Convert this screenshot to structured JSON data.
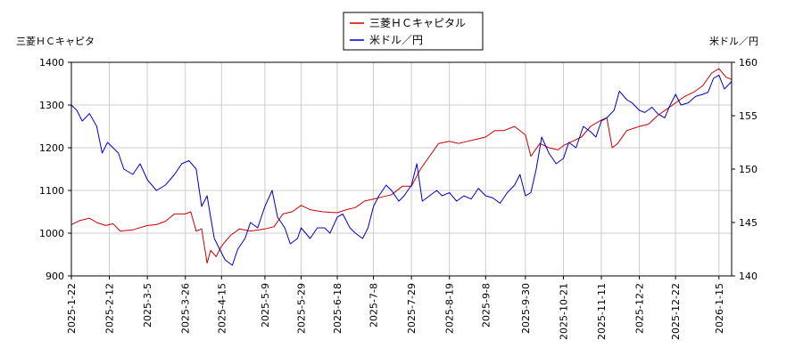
{
  "chart_data": {
    "type": "line",
    "left_axis_label": "三菱ＨＣキャピタ",
    "right_axis_label": "米ドル／円",
    "legend": {
      "placement": "top-center"
    },
    "left_ylim": [
      900,
      1400
    ],
    "left_yticks": [
      900,
      1000,
      1100,
      1200,
      1300,
      1400
    ],
    "right_ylim": [
      140,
      160
    ],
    "right_yticks": [
      140,
      145,
      150,
      155,
      160
    ],
    "x_ticks": [
      "2025-1-22",
      "2025-2-12",
      "2025-3-5",
      "2025-3-26",
      "2025-4-15",
      "2025-5-9",
      "2025-5-29",
      "2025-6-18",
      "2025-7-8",
      "2025-7-29",
      "2025-8-19",
      "2025-9-8",
      "2025-9-30",
      "2025-10-21",
      "2025-11-11",
      "2025-12-2",
      "2025-12-22",
      "2026-1-15"
    ],
    "grid": true,
    "series": [
      {
        "name": "三菱ＨＣキャピタル",
        "axis": "left",
        "color": "#cc0000",
        "points": [
          [
            "2025-01-22",
            1020
          ],
          [
            "2025-01-27",
            1030
          ],
          [
            "2025-02-01",
            1035
          ],
          [
            "2025-02-05",
            1025
          ],
          [
            "2025-02-10",
            1018
          ],
          [
            "2025-02-14",
            1022
          ],
          [
            "2025-02-18",
            1005
          ],
          [
            "2025-02-25",
            1008
          ],
          [
            "2025-03-05",
            1018
          ],
          [
            "2025-03-10",
            1020
          ],
          [
            "2025-03-15",
            1028
          ],
          [
            "2025-03-20",
            1045
          ],
          [
            "2025-03-26",
            1045
          ],
          [
            "2025-03-29",
            1050
          ],
          [
            "2025-04-01",
            1005
          ],
          [
            "2025-04-04",
            1010
          ],
          [
            "2025-04-07",
            930
          ],
          [
            "2025-04-09",
            960
          ],
          [
            "2025-04-12",
            945
          ],
          [
            "2025-04-15",
            970
          ],
          [
            "2025-04-20",
            995
          ],
          [
            "2025-04-25",
            1010
          ],
          [
            "2025-05-01",
            1005
          ],
          [
            "2025-05-09",
            1010
          ],
          [
            "2025-05-14",
            1015
          ],
          [
            "2025-05-19",
            1045
          ],
          [
            "2025-05-24",
            1050
          ],
          [
            "2025-05-29",
            1065
          ],
          [
            "2025-06-03",
            1055
          ],
          [
            "2025-06-10",
            1050
          ],
          [
            "2025-06-18",
            1048
          ],
          [
            "2025-06-23",
            1055
          ],
          [
            "2025-06-28",
            1060
          ],
          [
            "2025-07-03",
            1075
          ],
          [
            "2025-07-08",
            1080
          ],
          [
            "2025-07-13",
            1085
          ],
          [
            "2025-07-18",
            1090
          ],
          [
            "2025-07-24",
            1110
          ],
          [
            "2025-07-29",
            1110
          ],
          [
            "2025-08-03",
            1150
          ],
          [
            "2025-08-08",
            1180
          ],
          [
            "2025-08-13",
            1210
          ],
          [
            "2025-08-19",
            1215
          ],
          [
            "2025-08-24",
            1210
          ],
          [
            "2025-08-29",
            1215
          ],
          [
            "2025-09-03",
            1220
          ],
          [
            "2025-09-08",
            1225
          ],
          [
            "2025-09-13",
            1240
          ],
          [
            "2025-09-18",
            1240
          ],
          [
            "2025-09-24",
            1250
          ],
          [
            "2025-09-30",
            1230
          ],
          [
            "2025-10-03",
            1180
          ],
          [
            "2025-10-08",
            1210
          ],
          [
            "2025-10-13",
            1200
          ],
          [
            "2025-10-18",
            1195
          ],
          [
            "2025-10-21",
            1205
          ],
          [
            "2025-10-26",
            1215
          ],
          [
            "2025-10-31",
            1225
          ],
          [
            "2025-11-05",
            1250
          ],
          [
            "2025-11-11",
            1265
          ],
          [
            "2025-11-14",
            1270
          ],
          [
            "2025-11-17",
            1200
          ],
          [
            "2025-11-20",
            1210
          ],
          [
            "2025-11-25",
            1240
          ],
          [
            "2025-12-02",
            1250
          ],
          [
            "2025-12-07",
            1255
          ],
          [
            "2025-12-12",
            1275
          ],
          [
            "2025-12-17",
            1290
          ],
          [
            "2025-12-22",
            1305
          ],
          [
            "2025-12-27",
            1320
          ],
          [
            "2026-01-01",
            1330
          ],
          [
            "2026-01-06",
            1345
          ],
          [
            "2026-01-11",
            1375
          ],
          [
            "2026-01-15",
            1385
          ],
          [
            "2026-01-19",
            1365
          ],
          [
            "2026-01-22",
            1360
          ]
        ]
      },
      {
        "name": "米ドル／円",
        "axis": "right",
        "color": "#0000cc",
        "points": [
          [
            "2025-01-22",
            156.0
          ],
          [
            "2025-01-25",
            155.5
          ],
          [
            "2025-01-28",
            154.5
          ],
          [
            "2025-02-01",
            155.2
          ],
          [
            "2025-02-05",
            154.0
          ],
          [
            "2025-02-08",
            151.5
          ],
          [
            "2025-02-11",
            152.5
          ],
          [
            "2025-02-14",
            152.0
          ],
          [
            "2025-02-17",
            151.5
          ],
          [
            "2025-02-20",
            150.0
          ],
          [
            "2025-02-25",
            149.5
          ],
          [
            "2025-03-01",
            150.5
          ],
          [
            "2025-03-05",
            149.0
          ],
          [
            "2025-03-10",
            148.0
          ],
          [
            "2025-03-15",
            148.5
          ],
          [
            "2025-03-20",
            149.5
          ],
          [
            "2025-03-24",
            150.5
          ],
          [
            "2025-03-28",
            150.8
          ],
          [
            "2025-04-01",
            150.0
          ],
          [
            "2025-04-04",
            146.5
          ],
          [
            "2025-04-07",
            147.5
          ],
          [
            "2025-04-09",
            145.5
          ],
          [
            "2025-04-11",
            143.5
          ],
          [
            "2025-04-14",
            142.5
          ],
          [
            "2025-04-17",
            141.5
          ],
          [
            "2025-04-21",
            141.0
          ],
          [
            "2025-04-24",
            142.5
          ],
          [
            "2025-04-28",
            143.5
          ],
          [
            "2025-05-01",
            145.0
          ],
          [
            "2025-05-05",
            144.5
          ],
          [
            "2025-05-09",
            146.5
          ],
          [
            "2025-05-13",
            148.0
          ],
          [
            "2025-05-16",
            145.5
          ],
          [
            "2025-05-20",
            144.5
          ],
          [
            "2025-05-23",
            143.0
          ],
          [
            "2025-05-27",
            143.5
          ],
          [
            "2025-05-29",
            144.5
          ],
          [
            "2025-06-03",
            143.5
          ],
          [
            "2025-06-07",
            144.5
          ],
          [
            "2025-06-11",
            144.5
          ],
          [
            "2025-06-14",
            144.0
          ],
          [
            "2025-06-18",
            145.5
          ],
          [
            "2025-06-21",
            145.8
          ],
          [
            "2025-06-25",
            144.5
          ],
          [
            "2025-06-28",
            144.0
          ],
          [
            "2025-07-02",
            143.5
          ],
          [
            "2025-07-05",
            144.5
          ],
          [
            "2025-07-08",
            146.5
          ],
          [
            "2025-07-11",
            147.5
          ],
          [
            "2025-07-15",
            148.5
          ],
          [
            "2025-07-18",
            148.0
          ],
          [
            "2025-07-22",
            147.0
          ],
          [
            "2025-07-25",
            147.5
          ],
          [
            "2025-07-29",
            148.5
          ],
          [
            "2025-08-01",
            150.5
          ],
          [
            "2025-08-04",
            147.0
          ],
          [
            "2025-08-08",
            147.5
          ],
          [
            "2025-08-12",
            148.0
          ],
          [
            "2025-08-15",
            147.5
          ],
          [
            "2025-08-19",
            147.8
          ],
          [
            "2025-08-23",
            147.0
          ],
          [
            "2025-08-27",
            147.5
          ],
          [
            "2025-08-31",
            147.2
          ],
          [
            "2025-09-04",
            148.2
          ],
          [
            "2025-09-08",
            147.5
          ],
          [
            "2025-09-12",
            147.3
          ],
          [
            "2025-09-16",
            146.8
          ],
          [
            "2025-09-20",
            147.8
          ],
          [
            "2025-09-24",
            148.5
          ],
          [
            "2025-09-27",
            149.5
          ],
          [
            "2025-09-30",
            147.5
          ],
          [
            "2025-10-03",
            147.8
          ],
          [
            "2025-10-06",
            150.0
          ],
          [
            "2025-10-09",
            153.0
          ],
          [
            "2025-10-13",
            151.5
          ],
          [
            "2025-10-17",
            150.5
          ],
          [
            "2025-10-21",
            151.0
          ],
          [
            "2025-10-24",
            152.5
          ],
          [
            "2025-10-28",
            152.0
          ],
          [
            "2025-11-01",
            154.0
          ],
          [
            "2025-11-05",
            153.5
          ],
          [
            "2025-11-08",
            153.0
          ],
          [
            "2025-11-11",
            154.5
          ],
          [
            "2025-11-14",
            154.8
          ],
          [
            "2025-11-18",
            155.5
          ],
          [
            "2025-11-21",
            157.3
          ],
          [
            "2025-11-25",
            156.5
          ],
          [
            "2025-11-28",
            156.2
          ],
          [
            "2025-12-02",
            155.5
          ],
          [
            "2025-12-05",
            155.3
          ],
          [
            "2025-12-09",
            155.8
          ],
          [
            "2025-12-12",
            155.2
          ],
          [
            "2025-12-16",
            154.8
          ],
          [
            "2025-12-19",
            156.0
          ],
          [
            "2025-12-22",
            157.0
          ],
          [
            "2025-12-25",
            156.0
          ],
          [
            "2025-12-29",
            156.2
          ],
          [
            "2026-01-02",
            156.8
          ],
          [
            "2026-01-06",
            157.0
          ],
          [
            "2026-01-09",
            157.2
          ],
          [
            "2026-01-12",
            158.5
          ],
          [
            "2026-01-15",
            158.8
          ],
          [
            "2026-01-18",
            157.5
          ],
          [
            "2026-01-22",
            158.2
          ]
        ]
      }
    ]
  }
}
